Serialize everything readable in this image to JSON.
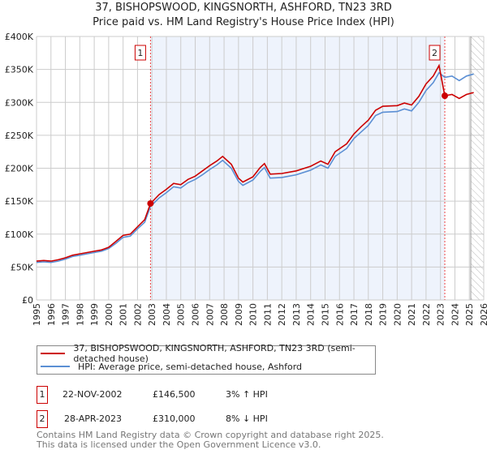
{
  "chart_data": {
    "type": "line",
    "title": "37, BISHOPSWOOD, KINGSNORTH, ASHFORD, TN23 3RD",
    "subtitle": "Price paid vs. HM Land Registry's House Price Index (HPI)",
    "xlim": [
      1995,
      2026
    ],
    "ylim": [
      0,
      400000
    ],
    "yticks": [
      {
        "v": 0,
        "label": "£0"
      },
      {
        "v": 50000,
        "label": "£50K"
      },
      {
        "v": 100000,
        "label": "£100K"
      },
      {
        "v": 150000,
        "label": "£150K"
      },
      {
        "v": 200000,
        "label": "£200K"
      },
      {
        "v": 250000,
        "label": "£250K"
      },
      {
        "v": 300000,
        "label": "£300K"
      },
      {
        "v": 350000,
        "label": "£350K"
      },
      {
        "v": 400000,
        "label": "£400K"
      }
    ],
    "xticks": [
      "1995",
      "1996",
      "1997",
      "1998",
      "1999",
      "2000",
      "2001",
      "2002",
      "2003",
      "2004",
      "2005",
      "2006",
      "2007",
      "2008",
      "2009",
      "2010",
      "2011",
      "2012",
      "2013",
      "2014",
      "2015",
      "2016",
      "2017",
      "2018",
      "2019",
      "2020",
      "2021",
      "2022",
      "2023",
      "2024",
      "2025",
      "2026"
    ],
    "grid": true,
    "shaded_range": [
      2002.9,
      2023.3
    ],
    "forecast_from": 2025.1,
    "colors": {
      "property": "#cc0000",
      "hpi": "#5b8fd4",
      "shade": "#eef3fc",
      "grid": "#cccccc"
    },
    "x": [
      1995.0,
      1995.5,
      1996.0,
      1996.5,
      1997.0,
      1997.5,
      1998.0,
      1998.5,
      1999.0,
      1999.5,
      2000.0,
      2000.5,
      2001.0,
      2001.5,
      2002.0,
      2002.5,
      2002.9,
      2003.5,
      2004.0,
      2004.5,
      2005.0,
      2005.5,
      2006.0,
      2006.5,
      2007.0,
      2007.5,
      2007.9,
      2008.5,
      2009.0,
      2009.3,
      2010.0,
      2010.5,
      2010.8,
      2011.2,
      2012.0,
      2013.0,
      2014.0,
      2014.7,
      2015.2,
      2015.7,
      2016.5,
      2017.0,
      2017.5,
      2018.0,
      2018.5,
      2019.0,
      2020.0,
      2020.5,
      2021.0,
      2021.5,
      2022.0,
      2022.5,
      2022.9,
      2023.3,
      2023.8,
      2024.3,
      2024.8,
      2025.3
    ],
    "series": [
      {
        "name": "37, BISHOPSWOOD, KINGSNORTH, ASHFORD, TN23 3RD (semi-detached house)",
        "key": "property",
        "values": [
          59,
          60,
          59,
          61,
          64,
          68,
          70,
          72,
          74,
          76,
          80,
          89,
          98,
          100,
          111,
          122,
          146.5,
          160,
          168,
          177,
          175,
          183,
          188,
          196,
          204,
          211,
          218,
          206,
          185,
          179,
          187,
          201,
          207,
          191,
          192,
          196,
          203,
          211,
          206,
          225,
          237,
          252,
          263,
          273,
          288,
          294,
          295,
          299,
          296,
          309,
          328,
          340,
          356,
          310,
          312,
          306,
          312,
          315
        ]
      },
      {
        "name": "HPI: Average price, semi-detached house, Ashford",
        "key": "hpi",
        "values": [
          57,
          58,
          57,
          59,
          62,
          66,
          68,
          70,
          72,
          74,
          78,
          86,
          95,
          97,
          108,
          118,
          142,
          155,
          163,
          172,
          170,
          178,
          183,
          190,
          198,
          205,
          212,
          200,
          180,
          174,
          182,
          195,
          201,
          185,
          186,
          190,
          197,
          205,
          200,
          218,
          230,
          245,
          255,
          265,
          280,
          285,
          286,
          290,
          287,
          300,
          318,
          330,
          345,
          338,
          340,
          333,
          340,
          343
        ]
      }
    ],
    "value_unit": "thousand GBP",
    "markers": [
      {
        "id": "1",
        "x": 2002.9,
        "y": 146.5
      },
      {
        "id": "2",
        "x": 2023.3,
        "y": 310
      }
    ]
  },
  "legend": {
    "property": "37, BISHOPSWOOD, KINGSNORTH, ASHFORD, TN23 3RD (semi-detached house)",
    "hpi": "HPI: Average price, semi-detached house, Ashford"
  },
  "transactions": [
    {
      "num": "1",
      "date": "22-NOV-2002",
      "price": "£146,500",
      "hpi": "3% ↑ HPI"
    },
    {
      "num": "2",
      "date": "28-APR-2023",
      "price": "£310,000",
      "hpi": "8% ↓ HPI"
    }
  ],
  "footer": {
    "line1": "Contains HM Land Registry data © Crown copyright and database right 2025.",
    "line2": "This data is licensed under the Open Government Licence v3.0."
  }
}
